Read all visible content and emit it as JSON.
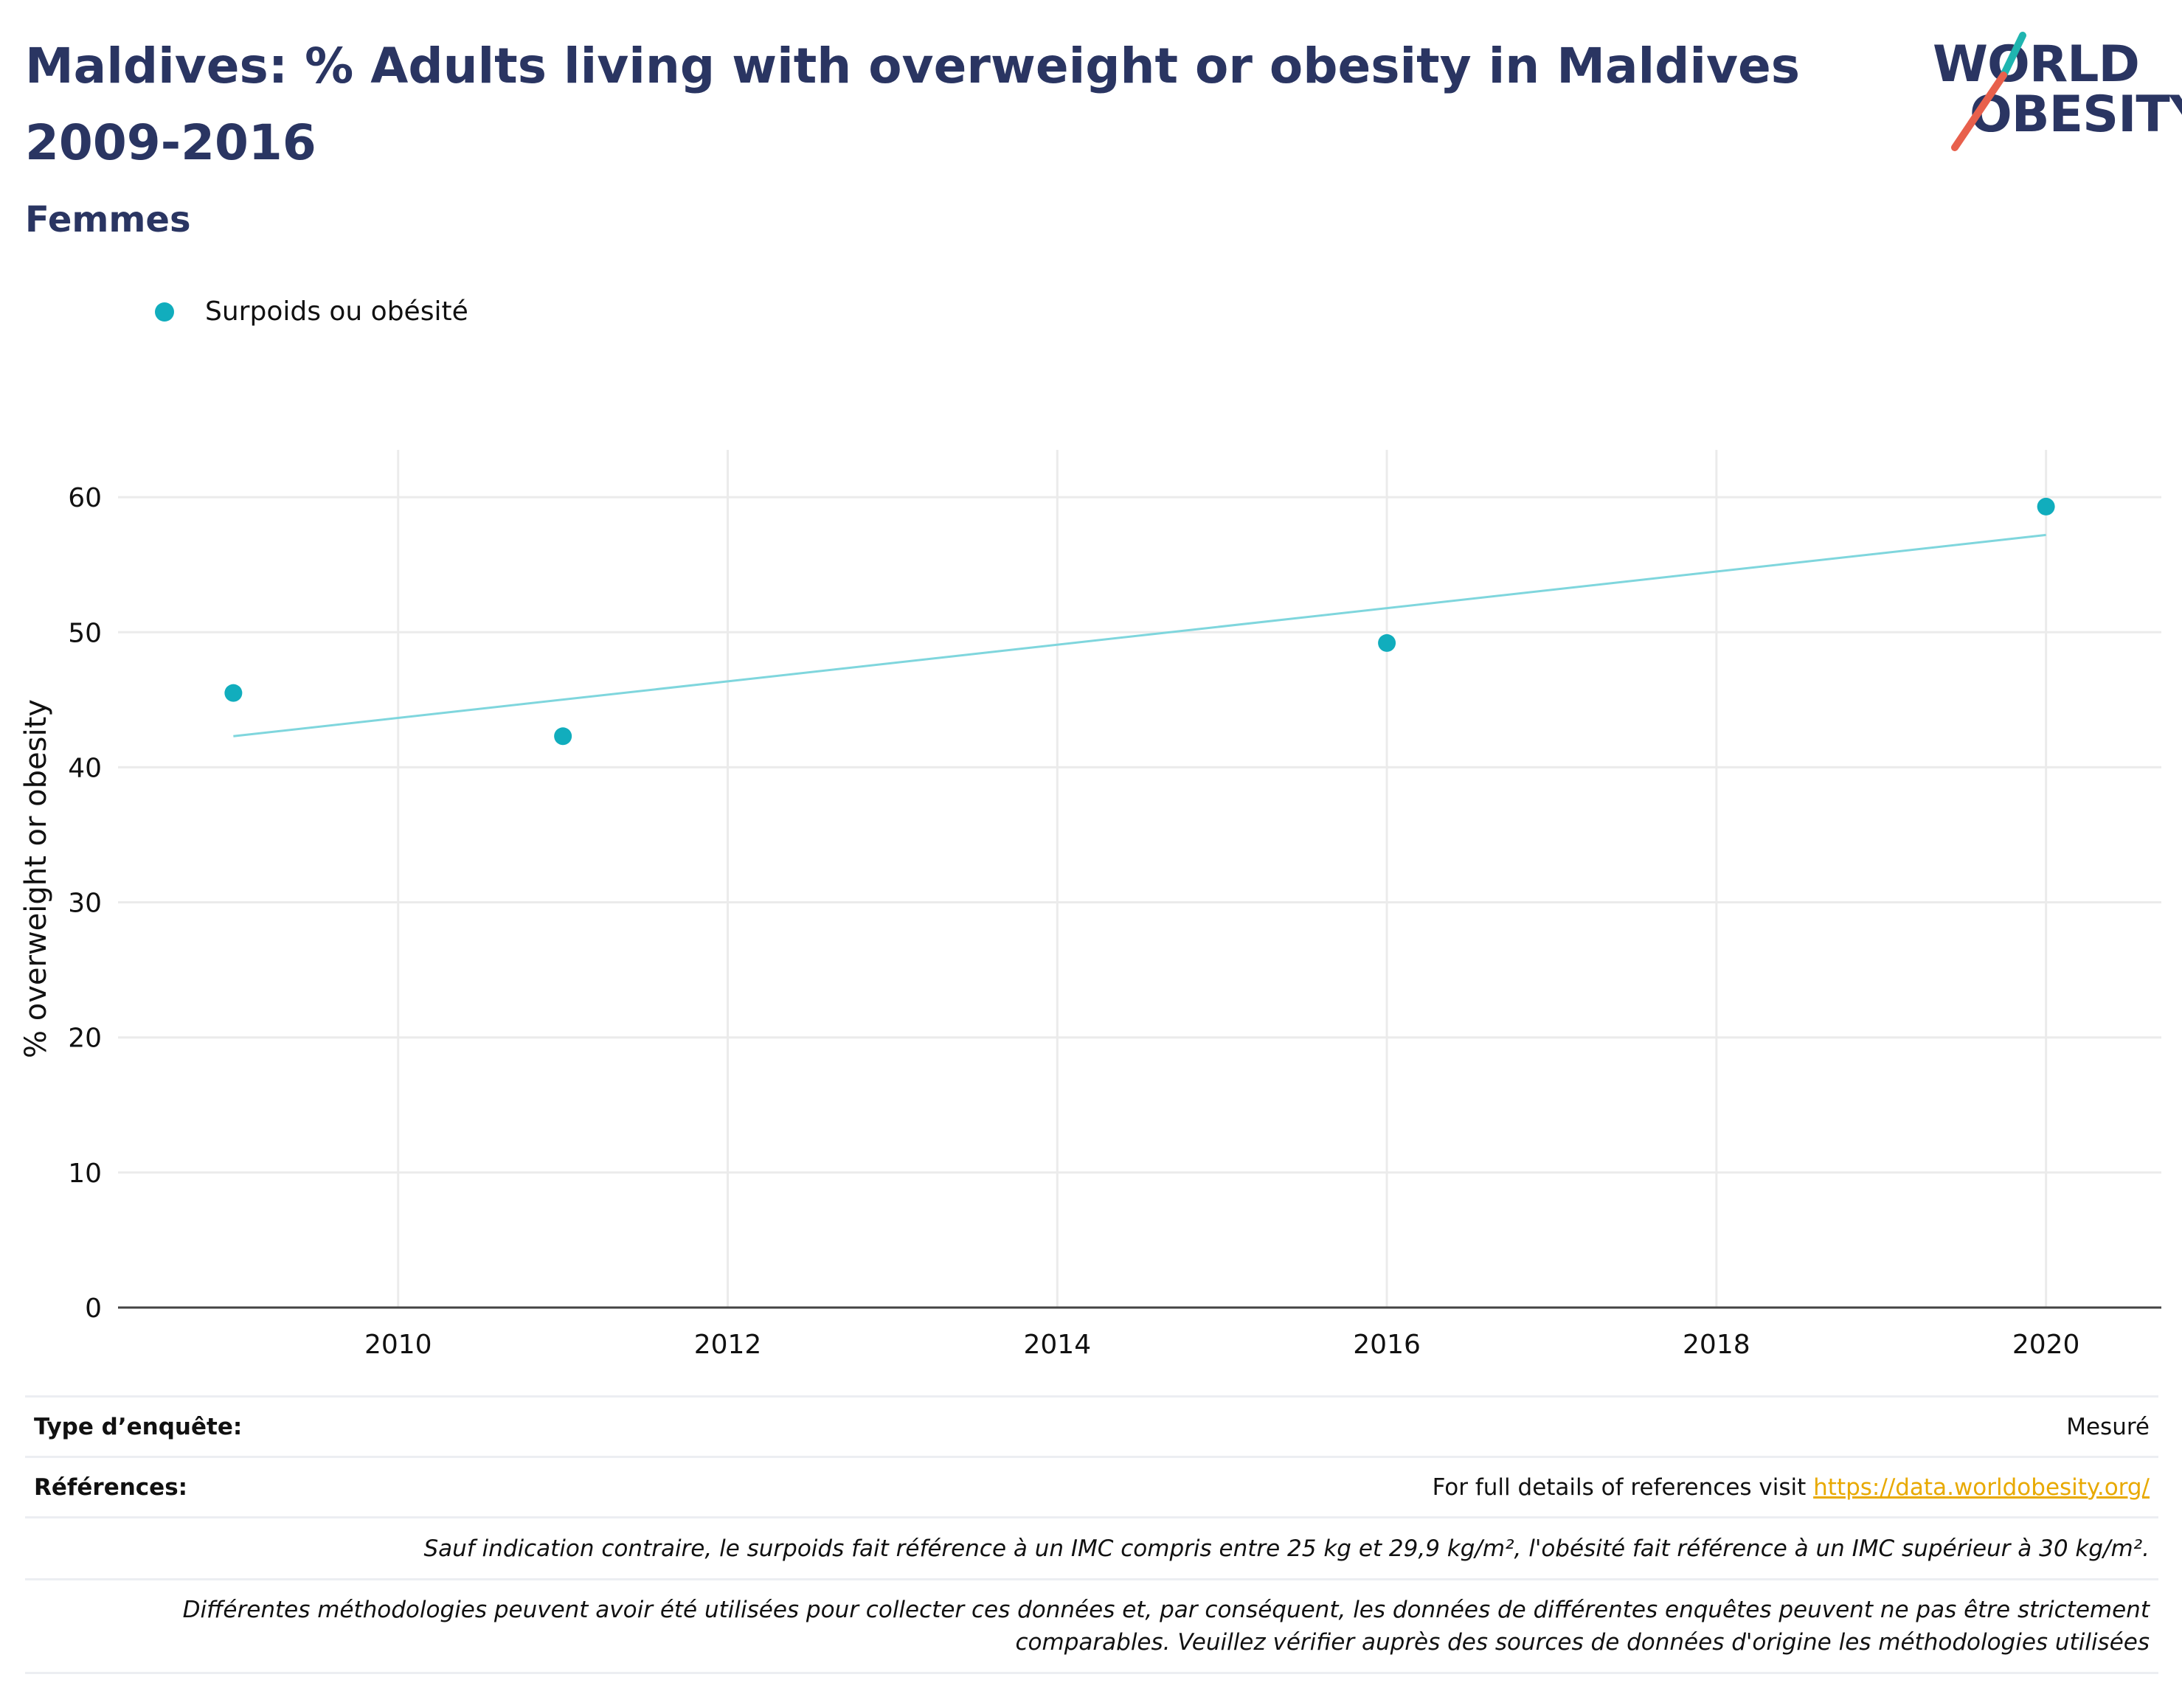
{
  "header": {
    "title": "Maldives: % Adults living with overweight or obesity in Maldives 2009-2016",
    "subtitle": "Femmes"
  },
  "logo": {
    "line1": "WORLD",
    "line2": "OBESITY",
    "colors": {
      "text": "#2a3562",
      "slash_top": "#1fb5b0",
      "slash_bottom": "#e8604c"
    }
  },
  "legend": {
    "items": [
      {
        "label": "Surpoids ou obésité",
        "color": "#11adbd"
      }
    ]
  },
  "chart_data": {
    "type": "scatter",
    "title": "Maldives: % Adults living with overweight or obesity in Maldives 2009-2016",
    "subtitle": "Femmes",
    "xlabel": "",
    "ylabel": "% overweight or obesity",
    "xlim": [
      2008.3,
      2020.7
    ],
    "ylim": [
      0,
      63.5
    ],
    "xticks": [
      2010,
      2012,
      2014,
      2016,
      2018,
      2020
    ],
    "yticks": [
      0,
      10,
      20,
      30,
      40,
      50,
      60
    ],
    "grid": true,
    "legend_position": "top-left",
    "series": [
      {
        "name": "Surpoids ou obésité",
        "color": "#11adbd",
        "points": [
          {
            "x": 2009,
            "y": 45.5
          },
          {
            "x": 2011,
            "y": 42.3
          },
          {
            "x": 2016,
            "y": 49.2
          },
          {
            "x": 2020,
            "y": 59.3
          }
        ]
      }
    ],
    "trendline": {
      "color": "#7fd6dd",
      "start": {
        "x": 2009,
        "y": 42.3
      },
      "end": {
        "x": 2020,
        "y": 57.2
      }
    }
  },
  "footer": {
    "survey_type_label": "Type d’enquête:",
    "survey_type_value": "Mesuré",
    "references_label": "Références:",
    "references_text": "For full details of references visit ",
    "references_link": "https://data.worldobesity.org/",
    "note1": "Sauf indication contraire, le surpoids fait référence à un IMC compris entre 25 kg et 29,9 kg/m², l'obésité fait référence à un IMC supérieur à 30 kg/m².",
    "note2_line1": "Différentes méthodologies peuvent avoir été utilisées pour collecter ces données et, par conséquent, les données de différentes enquêtes peuvent ne pas être strictement",
    "note2_line2": "comparables. Veuillez vérifier auprès des sources de données d'origine les méthodologies utilisées"
  }
}
